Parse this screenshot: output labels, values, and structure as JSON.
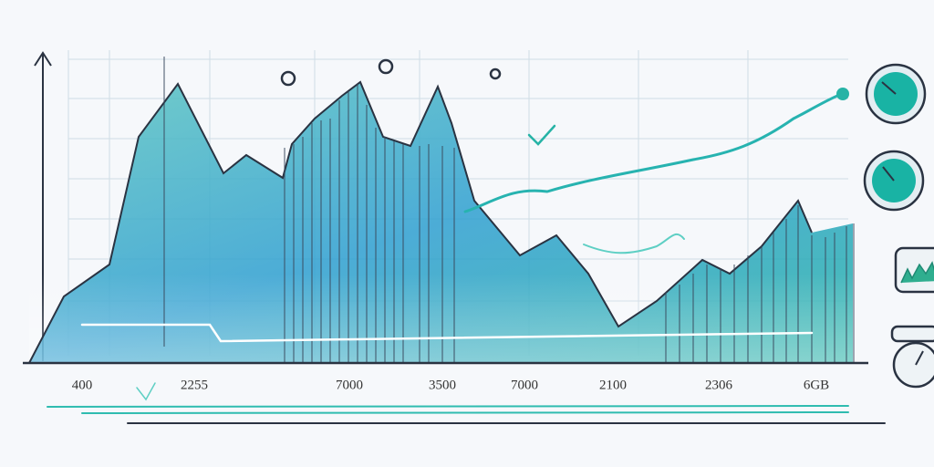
{
  "axis_labels": [
    "400",
    "2255",
    "7000",
    "3500",
    "7000",
    "2100",
    "2306",
    "6GB"
  ]
}
